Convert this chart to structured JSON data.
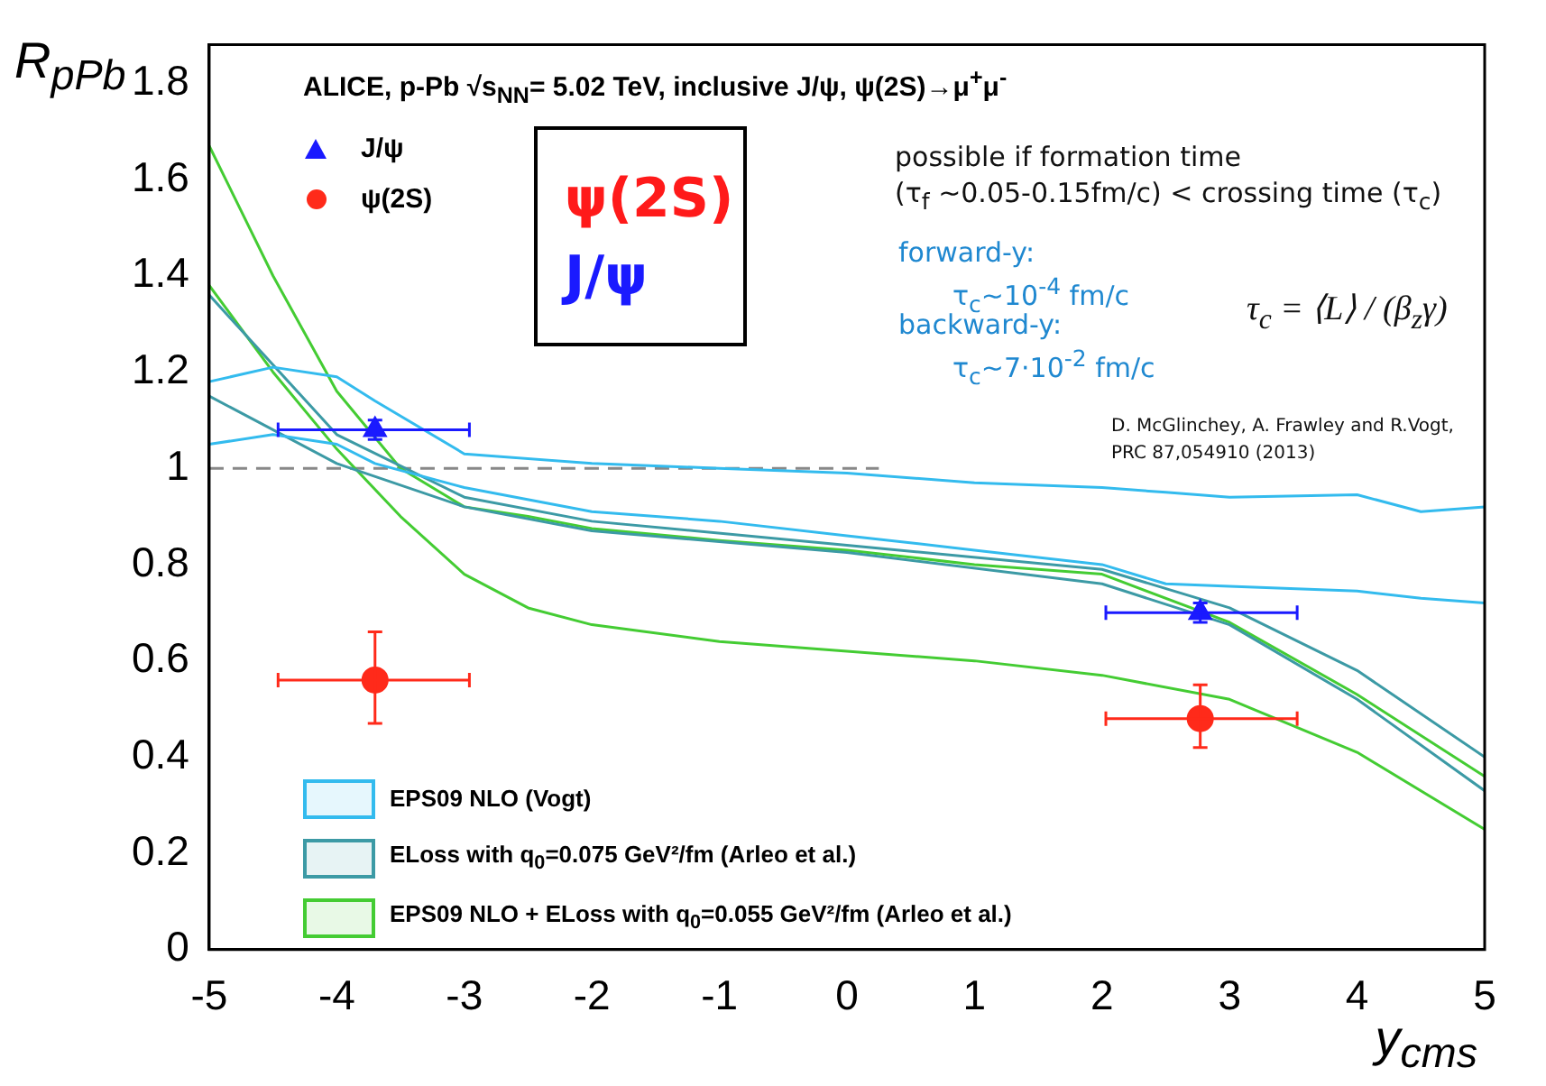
{
  "chart_data": {
    "type": "scatter",
    "title": "ALICE, p-Pb √s$_{NN}$= 5.02 TeV, inclusive J/ψ, ψ(2S)→μ$^{+}$μ$^{-}$",
    "xlabel": "y$_{cms}$",
    "ylabel": "R$_{pPb}$",
    "xlim": [
      -5,
      5
    ],
    "ylim": [
      0,
      1.88
    ],
    "xticks": [
      -5,
      -4,
      -3,
      -2,
      -1,
      0,
      1,
      2,
      3,
      4,
      5
    ],
    "yticks": [
      0,
      0.2,
      0.4,
      0.6,
      0.8,
      1,
      1.2,
      1.4,
      1.6,
      1.8
    ],
    "grid": false,
    "legend": "bottom left",
    "series": [
      {
        "type": "line",
        "color": "#33bbee",
        "x": [
          -5,
          -4.5,
          -4,
          -3.7,
          -3,
          -2,
          -1,
          0,
          1,
          2,
          2.5,
          3,
          4,
          4.5,
          5
        ],
        "values": [
          1.05,
          1.07,
          1.05,
          1.01,
          0.96,
          0.91,
          0.89,
          0.86,
          0.83,
          0.8,
          0.76,
          0.755,
          0.745,
          0.73,
          0.72
        ]
      },
      {
        "type": "line",
        "name": "EPS09 NLO (Vogt)",
        "color": "#33bbee",
        "x": [
          -5,
          -4.5,
          -4,
          -3.7,
          -3,
          -2,
          -1,
          0,
          1,
          2,
          2.5,
          3,
          4,
          4.5,
          5
        ],
        "values": [
          1.18,
          1.21,
          1.19,
          1.14,
          1.03,
          1.01,
          1.0,
          0.99,
          0.97,
          0.96,
          0.95,
          0.94,
          0.945,
          0.91,
          0.92
        ]
      },
      {
        "type": "line",
        "color": "#3c9aa5",
        "x": [
          -5,
          -4,
          -3,
          -2,
          0,
          2,
          3,
          4,
          5
        ],
        "values": [
          1.15,
          1.01,
          0.92,
          0.87,
          0.825,
          0.76,
          0.675,
          0.52,
          0.33
        ]
      },
      {
        "type": "line",
        "name": "ELoss with q$_{0}$=0.075 GeV²/fm (Arleo et al.)",
        "color": "#3c9aa5",
        "x": [
          -5,
          -4,
          -3,
          -2,
          0,
          2,
          3,
          4,
          5
        ],
        "values": [
          1.36,
          1.07,
          0.94,
          0.89,
          0.84,
          0.79,
          0.71,
          0.58,
          0.4
        ]
      },
      {
        "type": "line",
        "color": "#44cc33",
        "x": [
          -5,
          -4.5,
          -4,
          -3.5,
          -3,
          -2.5,
          -2,
          -1,
          0,
          1,
          2,
          3,
          4,
          5
        ],
        "values": [
          1.38,
          1.2,
          1.04,
          0.9,
          0.78,
          0.71,
          0.675,
          0.64,
          0.62,
          0.6,
          0.57,
          0.52,
          0.41,
          0.25
        ]
      },
      {
        "type": "line",
        "name": "EPS09 NLO + ELoss with q$_{0}$=0.055 GeV²/fm (Arleo et al.)",
        "color": "#44cc33",
        "x": [
          -5,
          -4.5,
          -4,
          -3.5,
          -3,
          -2.5,
          -2,
          -1,
          0,
          1,
          2,
          3,
          4,
          5
        ],
        "values": [
          1.67,
          1.4,
          1.16,
          1.0,
          0.92,
          0.9,
          0.875,
          0.85,
          0.83,
          0.8,
          0.78,
          0.68,
          0.53,
          0.36
        ]
      },
      {
        "type": "line",
        "color": "#888888",
        "line_style": "dashed",
        "x": [
          -5,
          0.25
        ],
        "values": [
          1,
          1
        ]
      },
      {
        "type": "scatter",
        "name": "J/ψ",
        "color": "#1a1aff",
        "marker": "triangle",
        "x": [
          -3.7,
          2.77
        ],
        "values": [
          1.08,
          0.7
        ],
        "errors": [
          0.02,
          0.02
        ],
        "xerrors": [
          [
            -4.46,
            -2.96
          ],
          [
            2.03,
            3.53
          ]
        ]
      },
      {
        "type": "scatter",
        "name": "ψ(2S)",
        "color": "#ff2a1a",
        "marker": "circle",
        "x": [
          -3.7,
          2.77
        ],
        "values": [
          0.56,
          0.48
        ],
        "errors": [
          [
            0.47,
            0.66
          ],
          [
            0.42,
            0.55
          ]
        ],
        "xerrors": [
          [
            -4.46,
            -2.96
          ],
          [
            2.03,
            3.53
          ]
        ]
      }
    ],
    "annotations": [
      "ψ(2S)",
      "J/ψ",
      "possible if formation time",
      "(τ$_{f}$ ~0.05-0.15fm/c) < crossing time (τ$_{c}$)",
      "forward-y:",
      "τ$_{c}$~10$^{-4}$ fm/c",
      "backward-y:",
      "τ$_{c}$~7·10$^{-2}$ fm/c",
      "τ$_{c}$ = ⟨L⟩ / (β$_{z}$γ)",
      "D. McGlinchey, A. Frawley and R.Vogt,",
      "PRC 87,054910 (2013)"
    ]
  }
}
